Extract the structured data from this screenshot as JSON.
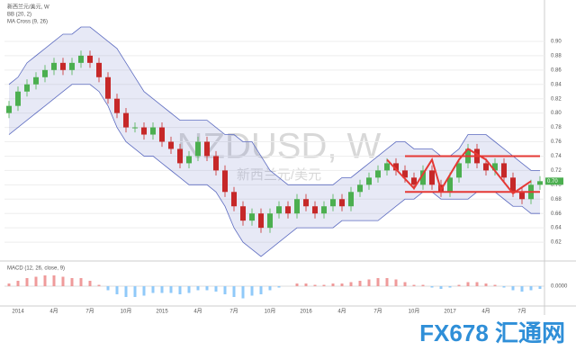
{
  "chart_data": {
    "type": "candlestick",
    "title": "NZDUSD, W",
    "subtitle": "新西兰元/美元",
    "legend_symbol": "新西兰元/美元, W",
    "bands_label": "BB (20, 2)",
    "ma_label": "MA Cross (9, 26)",
    "logo": "FX678 汇通网",
    "last_price": {
      "value": 0.705,
      "label": "0.70"
    },
    "up_color": "#4caf50",
    "down_color": "#c62828",
    "band_color": "#5c6bc0",
    "line_color": "#e53935",
    "categories": [
      null,
      "2014",
      null,
      null,
      null,
      "4月",
      null,
      null,
      null,
      "7月",
      null,
      null,
      null,
      "10月",
      null,
      null,
      null,
      "2015",
      null,
      null,
      null,
      "4月",
      null,
      null,
      null,
      "7月",
      null,
      null,
      null,
      "10月",
      null,
      null,
      null,
      "2016",
      null,
      null,
      null,
      "4月",
      null,
      null,
      null,
      "7月",
      null,
      null,
      null,
      "10月",
      null,
      null,
      null,
      "2017",
      null,
      null,
      null,
      "4月",
      null,
      null,
      null,
      "7月",
      null,
      null
    ],
    "open": [
      0.8,
      0.81,
      0.83,
      0.84,
      0.85,
      0.86,
      0.87,
      0.86,
      0.87,
      0.88,
      0.87,
      0.85,
      0.82,
      0.8,
      0.78,
      0.78,
      0.77,
      0.78,
      0.76,
      0.75,
      0.73,
      0.74,
      0.76,
      0.74,
      0.72,
      0.69,
      0.67,
      0.65,
      0.66,
      0.64,
      0.66,
      0.67,
      0.66,
      0.68,
      0.67,
      0.66,
      0.67,
      0.68,
      0.67,
      0.69,
      0.7,
      0.71,
      0.72,
      0.73,
      0.72,
      0.71,
      0.7,
      0.72,
      0.7,
      0.69,
      0.71,
      0.73,
      0.75,
      0.73,
      0.72,
      0.73,
      0.71,
      0.69,
      0.68,
      0.7
    ],
    "high": [
      0.817,
      0.837,
      0.847,
      0.857,
      0.867,
      0.877,
      0.877,
      0.877,
      0.887,
      0.887,
      0.877,
      0.857,
      0.827,
      0.807,
      0.787,
      0.787,
      0.787,
      0.787,
      0.767,
      0.757,
      0.747,
      0.767,
      0.767,
      0.747,
      0.727,
      0.697,
      0.677,
      0.667,
      0.667,
      0.667,
      0.677,
      0.677,
      0.687,
      0.687,
      0.677,
      0.677,
      0.687,
      0.687,
      0.697,
      0.707,
      0.717,
      0.727,
      0.737,
      0.737,
      0.727,
      0.717,
      0.727,
      0.727,
      0.707,
      0.717,
      0.737,
      0.757,
      0.757,
      0.737,
      0.737,
      0.737,
      0.717,
      0.697,
      0.707,
      0.712
    ],
    "low": [
      0.793,
      0.803,
      0.823,
      0.833,
      0.843,
      0.853,
      0.853,
      0.853,
      0.863,
      0.863,
      0.843,
      0.813,
      0.793,
      0.773,
      0.773,
      0.763,
      0.763,
      0.753,
      0.743,
      0.723,
      0.723,
      0.733,
      0.733,
      0.713,
      0.683,
      0.663,
      0.643,
      0.643,
      0.633,
      0.633,
      0.653,
      0.653,
      0.653,
      0.663,
      0.653,
      0.653,
      0.663,
      0.663,
      0.663,
      0.683,
      0.693,
      0.703,
      0.713,
      0.713,
      0.703,
      0.693,
      0.693,
      0.693,
      0.683,
      0.683,
      0.703,
      0.723,
      0.723,
      0.713,
      0.713,
      0.703,
      0.683,
      0.673,
      0.673,
      0.693
    ],
    "close": [
      0.81,
      0.83,
      0.84,
      0.85,
      0.86,
      0.87,
      0.86,
      0.87,
      0.88,
      0.87,
      0.85,
      0.82,
      0.8,
      0.78,
      0.78,
      0.77,
      0.78,
      0.76,
      0.75,
      0.73,
      0.74,
      0.76,
      0.74,
      0.72,
      0.69,
      0.67,
      0.65,
      0.66,
      0.64,
      0.66,
      0.67,
      0.66,
      0.68,
      0.67,
      0.66,
      0.67,
      0.68,
      0.67,
      0.69,
      0.7,
      0.71,
      0.72,
      0.73,
      0.72,
      0.71,
      0.7,
      0.72,
      0.7,
      0.69,
      0.71,
      0.73,
      0.75,
      0.73,
      0.72,
      0.73,
      0.71,
      0.69,
      0.68,
      0.7,
      0.705
    ],
    "upper_band": [
      0.84,
      0.85,
      0.87,
      0.88,
      0.89,
      0.9,
      0.91,
      0.91,
      0.92,
      0.92,
      0.91,
      0.9,
      0.89,
      0.87,
      0.85,
      0.83,
      0.82,
      0.81,
      0.8,
      0.79,
      0.79,
      0.79,
      0.79,
      0.78,
      0.77,
      0.77,
      0.76,
      0.76,
      0.74,
      0.72,
      0.71,
      0.7,
      0.7,
      0.7,
      0.7,
      0.7,
      0.7,
      0.71,
      0.71,
      0.72,
      0.73,
      0.74,
      0.75,
      0.76,
      0.76,
      0.75,
      0.75,
      0.75,
      0.74,
      0.74,
      0.75,
      0.77,
      0.77,
      0.77,
      0.76,
      0.75,
      0.74,
      0.73,
      0.72,
      0.72
    ],
    "lower_band": [
      0.77,
      0.78,
      0.79,
      0.8,
      0.81,
      0.82,
      0.83,
      0.84,
      0.84,
      0.84,
      0.83,
      0.81,
      0.78,
      0.76,
      0.75,
      0.74,
      0.74,
      0.73,
      0.72,
      0.71,
      0.7,
      0.7,
      0.7,
      0.69,
      0.67,
      0.64,
      0.62,
      0.61,
      0.6,
      0.61,
      0.62,
      0.63,
      0.64,
      0.64,
      0.64,
      0.64,
      0.64,
      0.65,
      0.65,
      0.65,
      0.65,
      0.65,
      0.66,
      0.67,
      0.68,
      0.68,
      0.69,
      0.69,
      0.68,
      0.68,
      0.68,
      0.68,
      0.69,
      0.69,
      0.69,
      0.68,
      0.67,
      0.67,
      0.66,
      0.66
    ],
    "trend_lines": [
      {
        "x": [
          44,
          59
        ],
        "y": [
          0.74,
          0.74
        ]
      },
      {
        "x": [
          44,
          59
        ],
        "y": [
          0.69,
          0.69
        ]
      },
      {
        "x": [
          42,
          45,
          47,
          48,
          50,
          51,
          53,
          56,
          58
        ],
        "y": [
          0.735,
          0.695,
          0.735,
          0.693,
          0.735,
          0.75,
          0.735,
          0.688,
          0.705
        ]
      }
    ],
    "ylim": [
      0.6,
      0.92
    ],
    "yticks": [
      {
        "value": 0.62,
        "label": "0.62"
      },
      {
        "value": 0.64,
        "label": "0.64"
      },
      {
        "value": 0.66,
        "label": "0.66"
      },
      {
        "value": 0.68,
        "label": "0.68"
      },
      {
        "value": 0.7,
        "label": "0.70"
      },
      {
        "value": 0.72,
        "label": "0.72"
      },
      {
        "value": 0.74,
        "label": "0.74"
      },
      {
        "value": 0.76,
        "label": "0.76"
      },
      {
        "value": 0.78,
        "label": "0.78"
      },
      {
        "value": 0.8,
        "label": "0.80"
      },
      {
        "value": 0.82,
        "label": "0.82"
      },
      {
        "value": 0.84,
        "label": "0.84"
      },
      {
        "value": 0.86,
        "label": "0.86"
      },
      {
        "value": 0.88,
        "label": "0.88"
      },
      {
        "value": 0.9,
        "label": "0.90"
      }
    ],
    "grid": true,
    "macd": {
      "label": "MACD (12, 26, close, 9)",
      "ylim": [
        -0.012,
        0.012
      ],
      "yticks": [
        {
          "value": 0,
          "label": "0.0000"
        }
      ],
      "histogram": [
        0.002,
        0.004,
        0.006,
        0.007,
        0.008,
        0.008,
        0.007,
        0.006,
        0.006,
        0.004,
        0.001,
        -0.003,
        -0.006,
        -0.008,
        -0.008,
        -0.007,
        -0.005,
        -0.005,
        -0.005,
        -0.006,
        -0.005,
        -0.003,
        -0.003,
        -0.004,
        -0.006,
        -0.008,
        -0.009,
        -0.007,
        -0.006,
        -0.003,
        -0.001,
        0.0,
        0.002,
        0.002,
        0.001,
        0.001,
        0.002,
        0.002,
        0.003,
        0.004,
        0.005,
        0.006,
        0.006,
        0.005,
        0.003,
        0.001,
        0.001,
        -0.001,
        -0.002,
        -0.001,
        0.001,
        0.003,
        0.003,
        0.002,
        0.001,
        -0.001,
        -0.003,
        -0.004,
        -0.003,
        -0.002
      ]
    }
  }
}
